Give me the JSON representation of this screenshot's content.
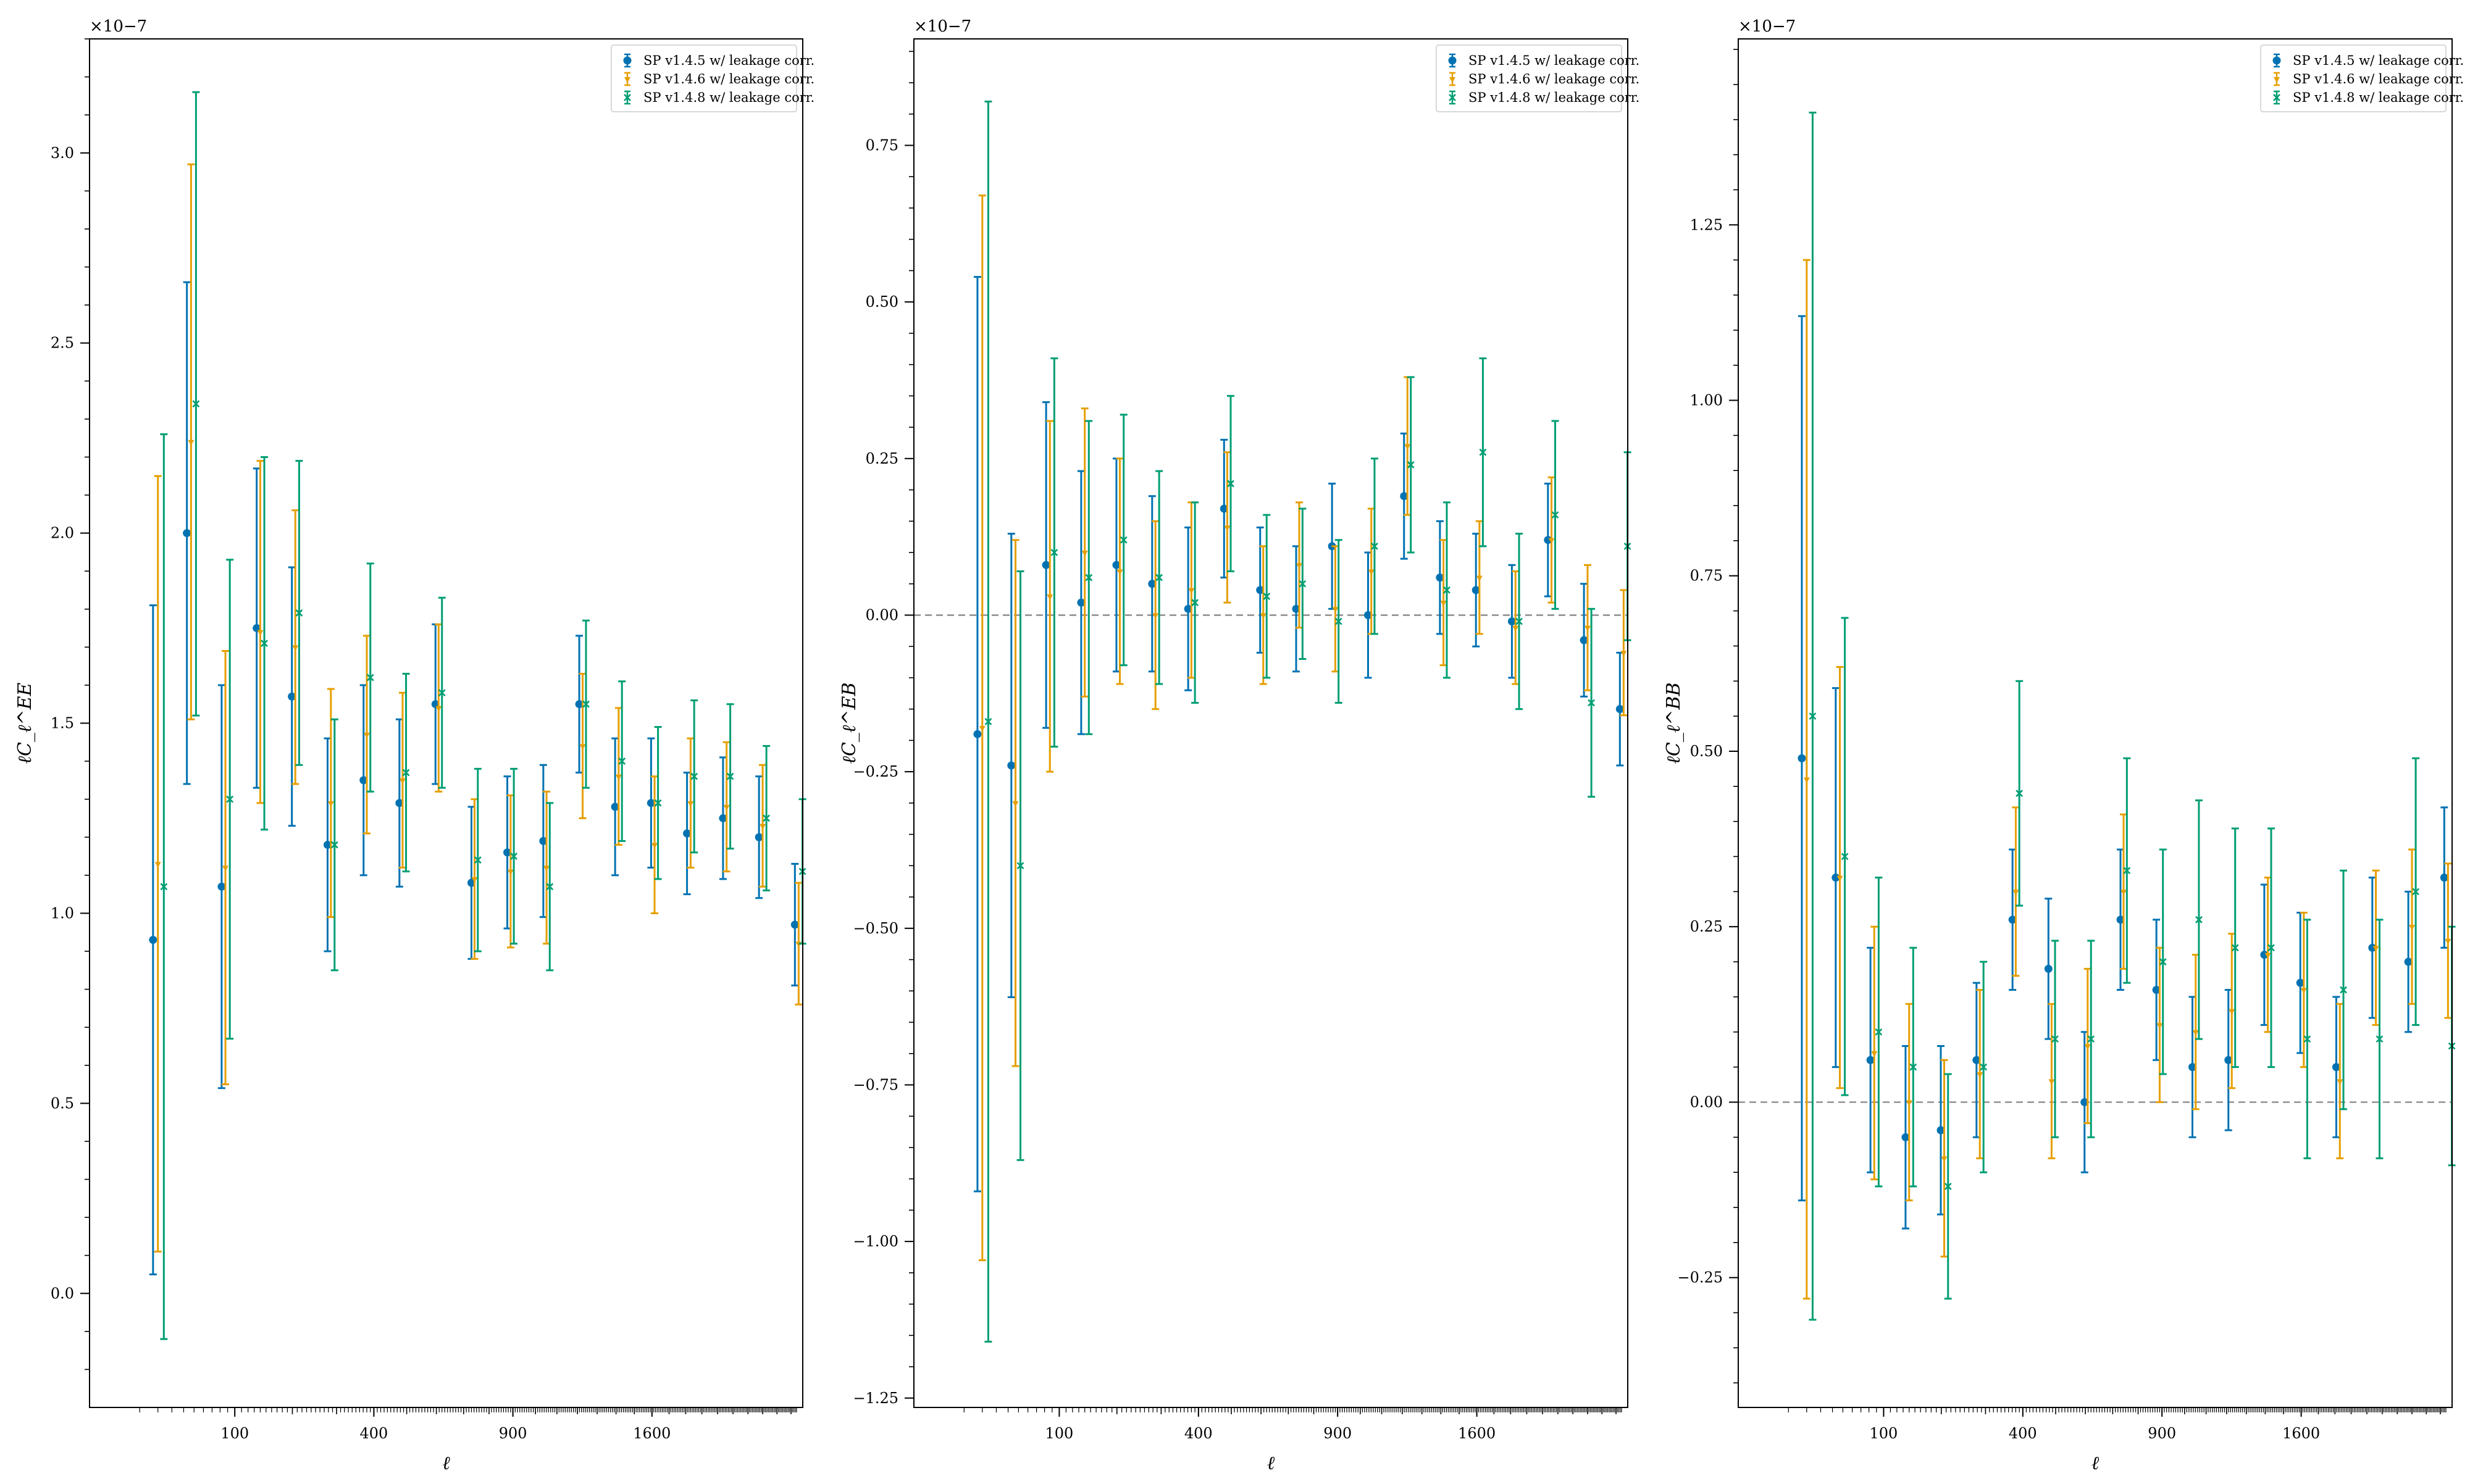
{
  "figure": {
    "legend_entries": [
      "SP v1.4.5 w/ leakage corr.",
      "SP v1.4.6 w/ leakage corr.",
      "SP v1.4.8 w/ leakage corr."
    ],
    "colors": {
      "v145": "#0072b2",
      "v146": "#e69f00",
      "v148": "#009e73",
      "zero_line": "#808080"
    }
  },
  "chart_data": [
    {
      "type": "scatter",
      "panel": "EE",
      "title": "",
      "xlabel": "ℓ",
      "ylabel": "ℓC_ℓ^EE",
      "y_multiplier": "×10−7",
      "x_scale": "sqrt",
      "xlim": [
        0,
        2540
      ],
      "ylim": [
        -0.3,
        3.3
      ],
      "xticks": [
        100,
        400,
        900,
        1600
      ],
      "yticks": [
        0.0,
        0.5,
        1.0,
        1.5,
        2.0,
        2.5,
        3.0
      ],
      "ytick_labels": [
        "0.0",
        "0.5",
        "1.0",
        "1.5",
        "2.0",
        "2.5",
        "3.0"
      ],
      "zero_line": false,
      "legend": "top-right",
      "series": [
        {
          "name": "SP v1.4.5 w/ leakage corr.",
          "x": [
            17,
            43,
            82,
            134,
            199,
            278,
            371,
            477,
            597,
            730,
            876,
            1036,
            1209,
            1395,
            1595,
            1808,
            2035,
            2275,
            2528
          ],
          "y": [
            0.93,
            2.0,
            1.07,
            1.75,
            1.57,
            1.18,
            1.35,
            1.29,
            1.55,
            1.08,
            1.16,
            1.19,
            1.55,
            1.28,
            1.29,
            1.21,
            1.25,
            1.2,
            0.97
          ],
          "err": [
            0.88,
            0.66,
            0.53,
            0.42,
            0.34,
            0.28,
            0.25,
            0.22,
            0.21,
            0.2,
            0.2,
            0.2,
            0.18,
            0.18,
            0.17,
            0.16,
            0.16,
            0.16,
            0.16
          ]
        },
        {
          "name": "SP v1.4.6 w/ leakage corr.",
          "x": [
            20,
            47,
            87,
            140,
            206,
            286,
            380,
            487,
            608,
            742,
            890,
            1051,
            1226,
            1414,
            1615,
            1830,
            2058,
            2300,
            2555
          ],
          "y": [
            1.13,
            2.24,
            1.12,
            1.74,
            1.7,
            1.29,
            1.47,
            1.35,
            1.54,
            1.09,
            1.11,
            1.12,
            1.44,
            1.36,
            1.18,
            1.29,
            1.28,
            1.23,
            0.92
          ],
          "err": [
            1.02,
            0.73,
            0.57,
            0.45,
            0.36,
            0.3,
            0.26,
            0.23,
            0.22,
            0.21,
            0.2,
            0.2,
            0.19,
            0.18,
            0.18,
            0.17,
            0.17,
            0.16,
            0.16
          ]
        },
        {
          "name": "SP v1.4.8 w/ leakage corr.",
          "x": [
            24,
            52,
            93,
            147,
            214,
            295,
            390,
            498,
            620,
            755,
            904,
            1066,
            1243,
            1432,
            1635,
            1852,
            2082,
            2326,
            2583
          ],
          "y": [
            1.07,
            2.34,
            1.3,
            1.71,
            1.79,
            1.18,
            1.62,
            1.37,
            1.58,
            1.14,
            1.15,
            1.07,
            1.55,
            1.4,
            1.29,
            1.36,
            1.36,
            1.25,
            1.11
          ],
          "err": [
            1.19,
            0.82,
            0.63,
            0.49,
            0.4,
            0.33,
            0.3,
            0.26,
            0.25,
            0.24,
            0.23,
            0.22,
            0.22,
            0.21,
            0.2,
            0.2,
            0.19,
            0.19,
            0.19
          ]
        }
      ]
    },
    {
      "type": "scatter",
      "panel": "EB",
      "title": "",
      "xlabel": "ℓ",
      "ylabel": "ℓC_ℓ^EB",
      "y_multiplier": "×10−7",
      "x_scale": "sqrt",
      "xlim": [
        0,
        2540
      ],
      "ylim": [
        -1.265,
        0.92
      ],
      "xticks": [
        100,
        400,
        900,
        1600
      ],
      "yticks": [
        -1.25,
        -1.0,
        -0.75,
        -0.5,
        -0.25,
        0.0,
        0.25,
        0.5,
        0.75
      ],
      "ytick_labels": [
        "−1.25",
        "−1.00",
        "−0.75",
        "−0.50",
        "−0.25",
        "0.00",
        "0.25",
        "0.50",
        "0.75"
      ],
      "zero_line": true,
      "legend": "top-right",
      "series": [
        {
          "name": "SP v1.4.5 w/ leakage corr.",
          "x": [
            17,
            43,
            82,
            134,
            199,
            278,
            371,
            477,
            597,
            730,
            876,
            1036,
            1209,
            1395,
            1595,
            1808,
            2035,
            2275,
            2528
          ],
          "y": [
            -0.19,
            -0.24,
            0.08,
            0.02,
            0.08,
            0.05,
            0.01,
            0.17,
            0.04,
            0.01,
            0.11,
            0.0,
            0.19,
            0.06,
            0.04,
            -0.01,
            0.12,
            -0.04,
            -0.15
          ],
          "err": [
            0.73,
            0.37,
            0.26,
            0.21,
            0.17,
            0.14,
            0.13,
            0.11,
            0.1,
            0.1,
            0.1,
            0.1,
            0.1,
            0.09,
            0.09,
            0.09,
            0.09,
            0.09,
            0.09
          ]
        },
        {
          "name": "SP v1.4.6 w/ leakage corr.",
          "x": [
            20,
            47,
            87,
            140,
            206,
            286,
            380,
            487,
            608,
            742,
            890,
            1051,
            1226,
            1414,
            1615,
            1830,
            2058,
            2300,
            2555
          ],
          "y": [
            -0.18,
            -0.3,
            0.03,
            0.1,
            0.07,
            0.0,
            0.04,
            0.14,
            0.0,
            0.08,
            0.01,
            0.07,
            0.27,
            0.02,
            0.06,
            -0.02,
            0.12,
            -0.02,
            -0.06
          ],
          "err": [
            0.85,
            0.42,
            0.28,
            0.23,
            0.18,
            0.15,
            0.14,
            0.12,
            0.11,
            0.1,
            0.1,
            0.1,
            0.11,
            0.1,
            0.09,
            0.09,
            0.1,
            0.1,
            0.1
          ]
        },
        {
          "name": "SP v1.4.8 w/ leakage corr.",
          "x": [
            24,
            52,
            93,
            147,
            214,
            295,
            390,
            498,
            620,
            755,
            904,
            1066,
            1243,
            1432,
            1635,
            1852,
            2082,
            2326,
            2583
          ],
          "y": [
            -0.17,
            -0.4,
            0.1,
            0.06,
            0.12,
            0.06,
            0.02,
            0.21,
            0.03,
            0.05,
            -0.01,
            0.11,
            0.24,
            0.04,
            0.26,
            -0.01,
            0.16,
            -0.14,
            0.11
          ],
          "err": [
            0.99,
            0.47,
            0.31,
            0.25,
            0.2,
            0.17,
            0.16,
            0.14,
            0.13,
            0.12,
            0.13,
            0.14,
            0.14,
            0.14,
            0.15,
            0.14,
            0.15,
            0.15,
            0.15
          ]
        }
      ]
    },
    {
      "type": "scatter",
      "panel": "BB",
      "title": "",
      "xlabel": "ℓ",
      "ylabel": "ℓC_ℓ^BB",
      "y_multiplier": "×10−7",
      "x_scale": "sqrt",
      "xlim": [
        0,
        2540
      ],
      "ylim": [
        -0.435,
        1.515
      ],
      "xticks": [
        100,
        400,
        900,
        1600
      ],
      "yticks": [
        -0.25,
        0.0,
        0.25,
        0.5,
        0.75,
        1.0,
        1.25
      ],
      "ytick_labels": [
        "−0.25",
        "0.00",
        "0.25",
        "0.50",
        "0.75",
        "1.00",
        "1.25"
      ],
      "zero_line": true,
      "legend": "top-right",
      "series": [
        {
          "name": "SP v1.4.5 w/ leakage corr.",
          "x": [
            17,
            43,
            82,
            134,
            199,
            278,
            371,
            477,
            597,
            730,
            876,
            1036,
            1209,
            1395,
            1595,
            1808,
            2035,
            2275,
            2528
          ],
          "y": [
            0.49,
            0.32,
            0.06,
            -0.05,
            -0.04,
            0.06,
            0.26,
            0.19,
            0.0,
            0.26,
            0.16,
            0.05,
            0.06,
            0.21,
            0.17,
            0.05,
            0.22,
            0.2,
            0.32
          ],
          "err": [
            0.63,
            0.27,
            0.16,
            0.13,
            0.12,
            0.11,
            0.1,
            0.1,
            0.1,
            0.1,
            0.1,
            0.1,
            0.1,
            0.1,
            0.1,
            0.1,
            0.1,
            0.1,
            0.1
          ]
        },
        {
          "name": "SP v1.4.6 w/ leakage corr.",
          "x": [
            20,
            47,
            87,
            140,
            206,
            286,
            380,
            487,
            608,
            742,
            890,
            1051,
            1226,
            1414,
            1615,
            1830,
            2058,
            2300,
            2555
          ],
          "y": [
            0.46,
            0.32,
            0.07,
            0.0,
            -0.08,
            0.04,
            0.3,
            0.03,
            0.08,
            0.3,
            0.11,
            0.1,
            0.13,
            0.21,
            0.16,
            0.03,
            0.22,
            0.25,
            0.23
          ],
          "err": [
            0.74,
            0.3,
            0.18,
            0.14,
            0.14,
            0.12,
            0.12,
            0.11,
            0.11,
            0.11,
            0.11,
            0.11,
            0.11,
            0.11,
            0.11,
            0.11,
            0.11,
            0.11,
            0.11
          ]
        },
        {
          "name": "SP v1.4.8 w/ leakage corr.",
          "x": [
            24,
            52,
            93,
            147,
            214,
            295,
            390,
            498,
            620,
            755,
            904,
            1066,
            1243,
            1432,
            1635,
            1852,
            2082,
            2326,
            2583
          ],
          "y": [
            0.55,
            0.35,
            0.1,
            0.05,
            -0.12,
            0.05,
            0.44,
            0.09,
            0.09,
            0.33,
            0.2,
            0.26,
            0.22,
            0.22,
            0.09,
            0.16,
            0.09,
            0.3,
            0.08
          ],
          "err": [
            0.86,
            0.34,
            0.22,
            0.17,
            0.16,
            0.15,
            0.16,
            0.14,
            0.14,
            0.16,
            0.16,
            0.17,
            0.17,
            0.17,
            0.17,
            0.17,
            0.17,
            0.19,
            0.17
          ]
        }
      ]
    }
  ]
}
